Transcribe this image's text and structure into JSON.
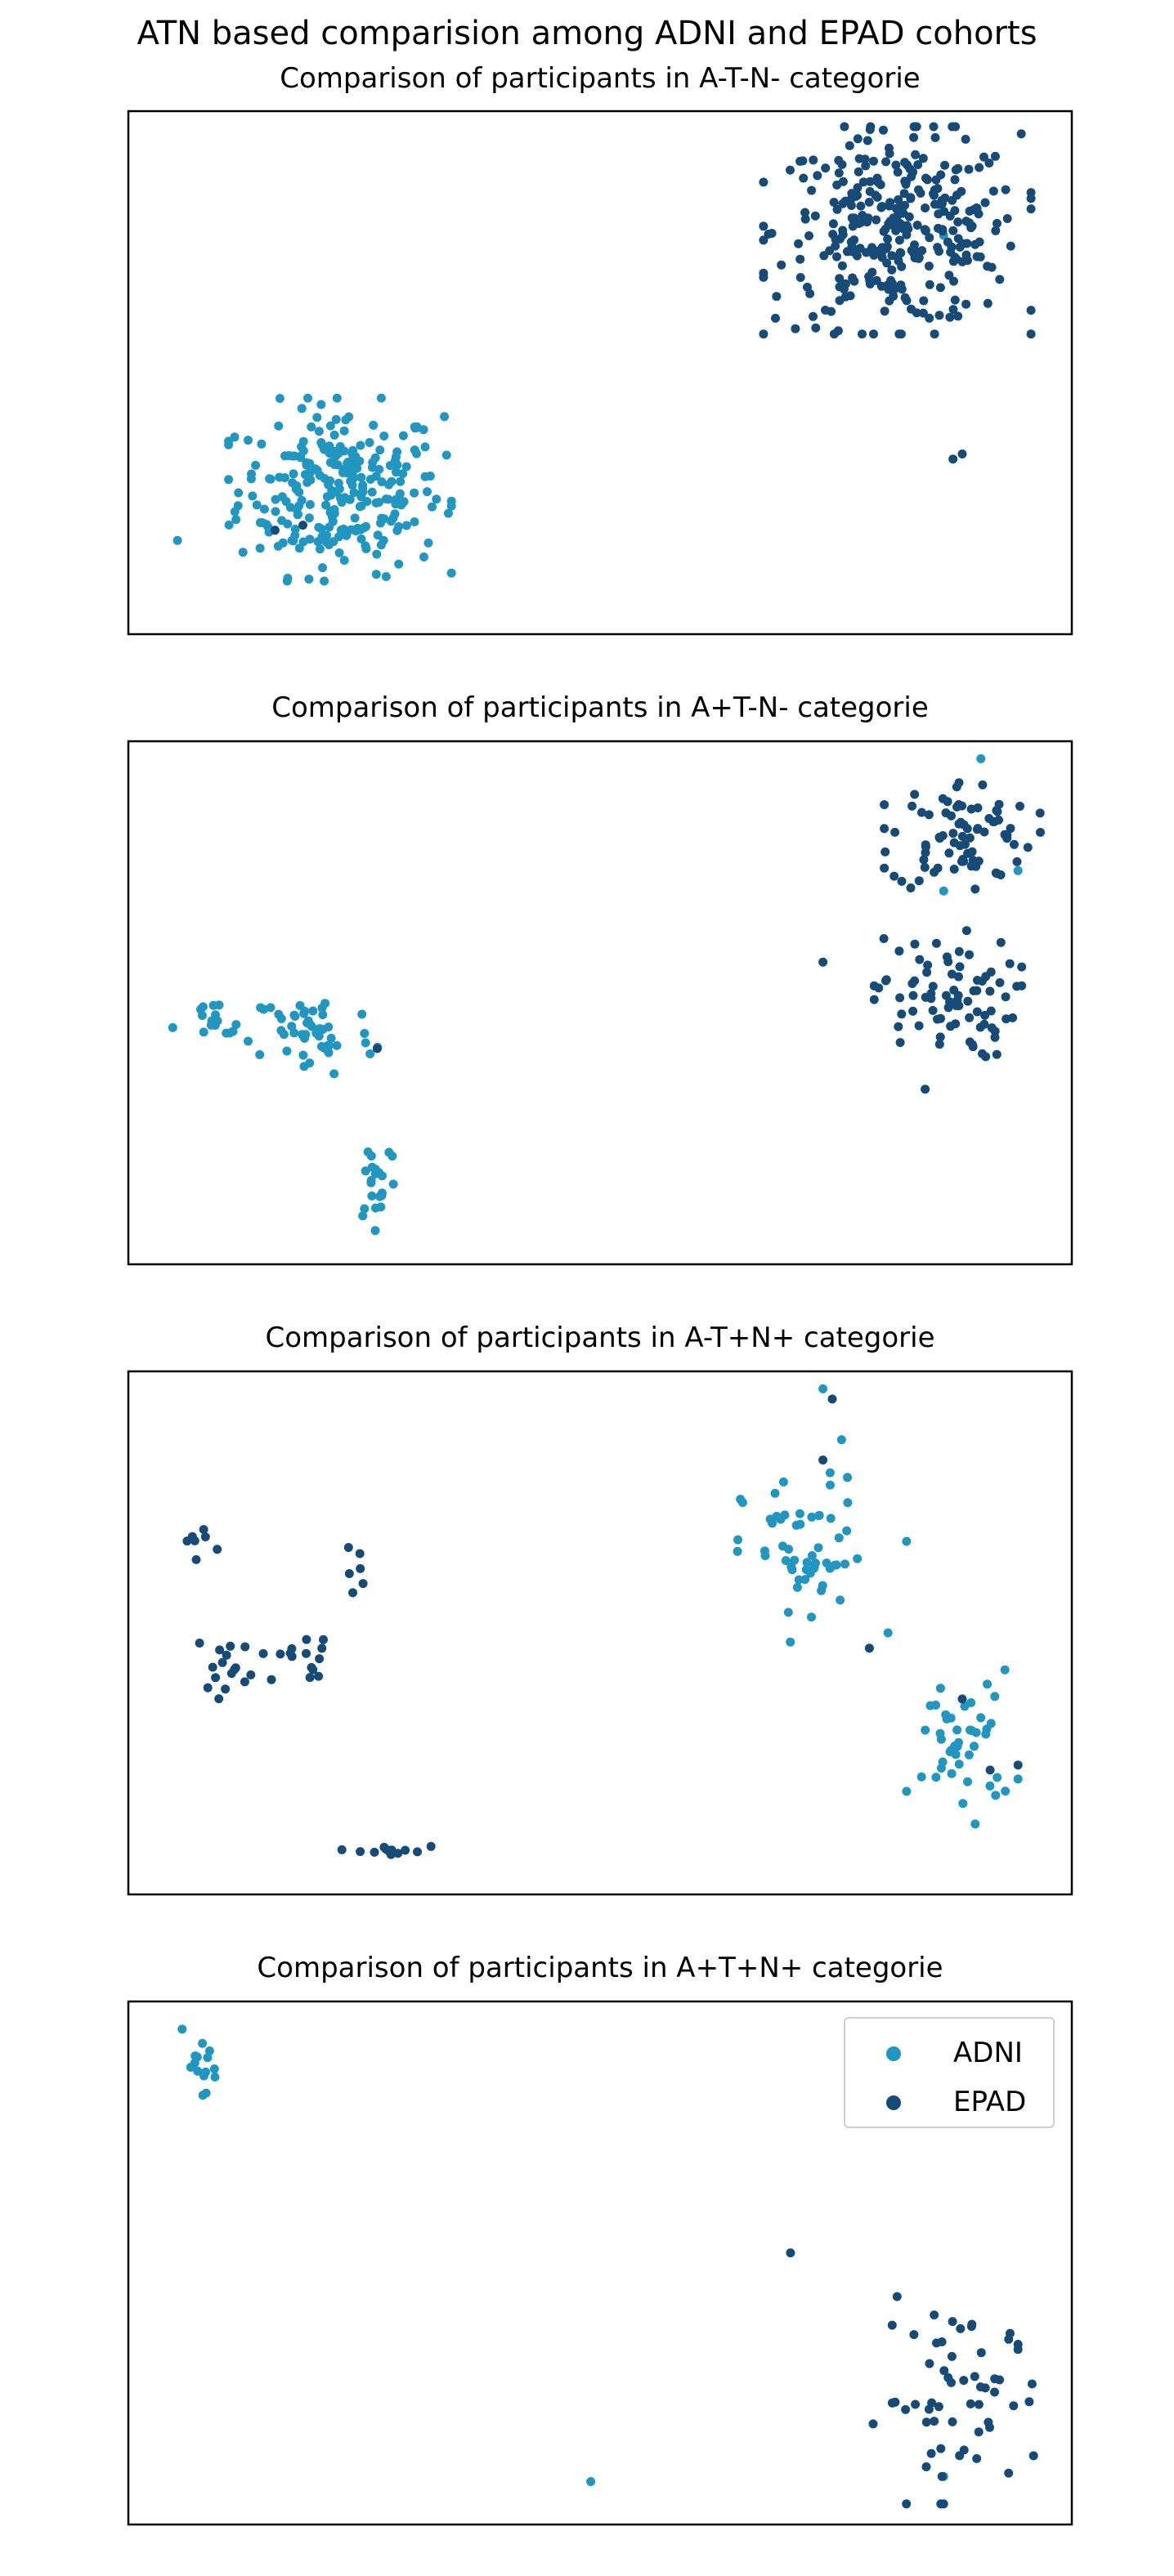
{
  "figure": {
    "title": "ATN based comparision among ADNI and EPAD cohorts"
  },
  "colors": {
    "ADNI": "#2196c0",
    "EPAD": "#164b78"
  },
  "legend": {
    "entries": [
      "ADNI",
      "EPAD"
    ],
    "placement": "top-right"
  },
  "chart_data": [
    {
      "type": "scatter",
      "title": "Comparison of participants in A-T-N- categorie",
      "grid": false,
      "axes_ticks": "hidden",
      "series": [
        {
          "name": "ADNI",
          "clusters": [
            {
              "cx": 0.22,
              "cy": 0.27,
              "rx": 0.1,
              "ry": 0.15,
              "n": 260
            }
          ],
          "points": [
            [
              0.045,
              0.17
            ],
            [
              0.87,
              0.77
            ]
          ]
        },
        {
          "name": "EPAD",
          "clusters": [
            {
              "cx": 0.82,
              "cy": 0.78,
              "rx": 0.12,
              "ry": 0.17,
              "n": 320
            }
          ],
          "points": [
            [
              0.69,
              0.65
            ],
            [
              0.88,
              0.33
            ],
            [
              0.89,
              0.34
            ],
            [
              0.15,
              0.19
            ],
            [
              0.18,
              0.2
            ]
          ]
        }
      ]
    },
    {
      "type": "scatter",
      "title": "Comparison of participants in A+T-N- categorie",
      "grid": false,
      "axes_ticks": "hidden",
      "series": [
        {
          "name": "ADNI",
          "clusters": [
            {
              "cx": 0.08,
              "cy": 0.45,
              "rx": 0.035,
              "ry": 0.05,
              "n": 16
            },
            {
              "cx": 0.19,
              "cy": 0.44,
              "rx": 0.06,
              "ry": 0.08,
              "n": 50
            },
            {
              "cx": 0.26,
              "cy": 0.16,
              "rx": 0.02,
              "ry": 0.09,
              "n": 22
            }
          ],
          "points": [
            [
              0.91,
              0.98
            ],
            [
              0.95,
              0.76
            ],
            [
              0.87,
              0.72
            ]
          ]
        },
        {
          "name": "EPAD",
          "clusters": [
            {
              "cx": 0.89,
              "cy": 0.83,
              "rx": 0.07,
              "ry": 0.1,
              "n": 80
            },
            {
              "cx": 0.87,
              "cy": 0.51,
              "rx": 0.07,
              "ry": 0.11,
              "n": 80
            }
          ],
          "points": [
            [
              0.74,
              0.58
            ],
            [
              0.85,
              0.33
            ],
            [
              0.26,
              0.41
            ]
          ]
        }
      ]
    },
    {
      "type": "scatter",
      "title": "Comparison of participants in A-T+N+ categorie",
      "grid": false,
      "axes_ticks": "hidden",
      "series": [
        {
          "name": "ADNI",
          "clusters": [
            {
              "cx": 0.72,
              "cy": 0.65,
              "rx": 0.06,
              "ry": 0.14,
              "n": 55
            },
            {
              "cx": 0.89,
              "cy": 0.28,
              "rx": 0.05,
              "ry": 0.13,
              "n": 45
            }
          ],
          "points": [
            [
              0.74,
              0.98
            ],
            [
              0.76,
              0.88
            ],
            [
              0.83,
              0.68
            ],
            [
              0.81,
              0.5
            ]
          ]
        },
        {
          "name": "EPAD",
          "clusters": [
            {
              "cx": 0.07,
              "cy": 0.68,
              "rx": 0.015,
              "ry": 0.03,
              "n": 7
            },
            {
              "cx": 0.1,
              "cy": 0.44,
              "rx": 0.03,
              "ry": 0.06,
              "n": 16
            },
            {
              "cx": 0.18,
              "cy": 0.45,
              "rx": 0.04,
              "ry": 0.04,
              "n": 15
            },
            {
              "cx": 0.233,
              "cy": 0.62,
              "rx": 0.01,
              "ry": 0.04,
              "n": 6
            },
            {
              "cx": 0.27,
              "cy": 0.07,
              "rx": 0.04,
              "ry": 0.015,
              "n": 14
            }
          ],
          "points": [
            [
              0.75,
              0.96
            ],
            [
              0.74,
              0.84
            ],
            [
              0.79,
              0.47
            ],
            [
              0.92,
              0.23
            ],
            [
              0.95,
              0.24
            ],
            [
              0.89,
              0.37
            ]
          ]
        }
      ]
    },
    {
      "type": "scatter",
      "title": "Comparison of participants in A+T+N+ categorie",
      "grid": false,
      "axes_ticks": "hidden",
      "legend_entries": [
        "ADNI",
        "EPAD"
      ],
      "legend_placement": "top-right",
      "series": [
        {
          "name": "ADNI",
          "clusters": [
            {
              "cx": 0.07,
              "cy": 0.89,
              "rx": 0.03,
              "ry": 0.05,
              "n": 15
            }
          ],
          "points": [
            [
              0.49,
              0.07
            ],
            [
              0.87,
              0.08
            ],
            [
              0.05,
              0.96
            ]
          ]
        },
        {
          "name": "EPAD",
          "clusters": [
            {
              "cx": 0.89,
              "cy": 0.23,
              "rx": 0.08,
              "ry": 0.17,
              "n": 55
            }
          ],
          "points": [
            [
              0.705,
              0.52
            ],
            [
              0.95,
              0.33
            ],
            [
              0.95,
              0.34
            ],
            [
              0.94,
              0.35
            ]
          ]
        }
      ]
    }
  ]
}
